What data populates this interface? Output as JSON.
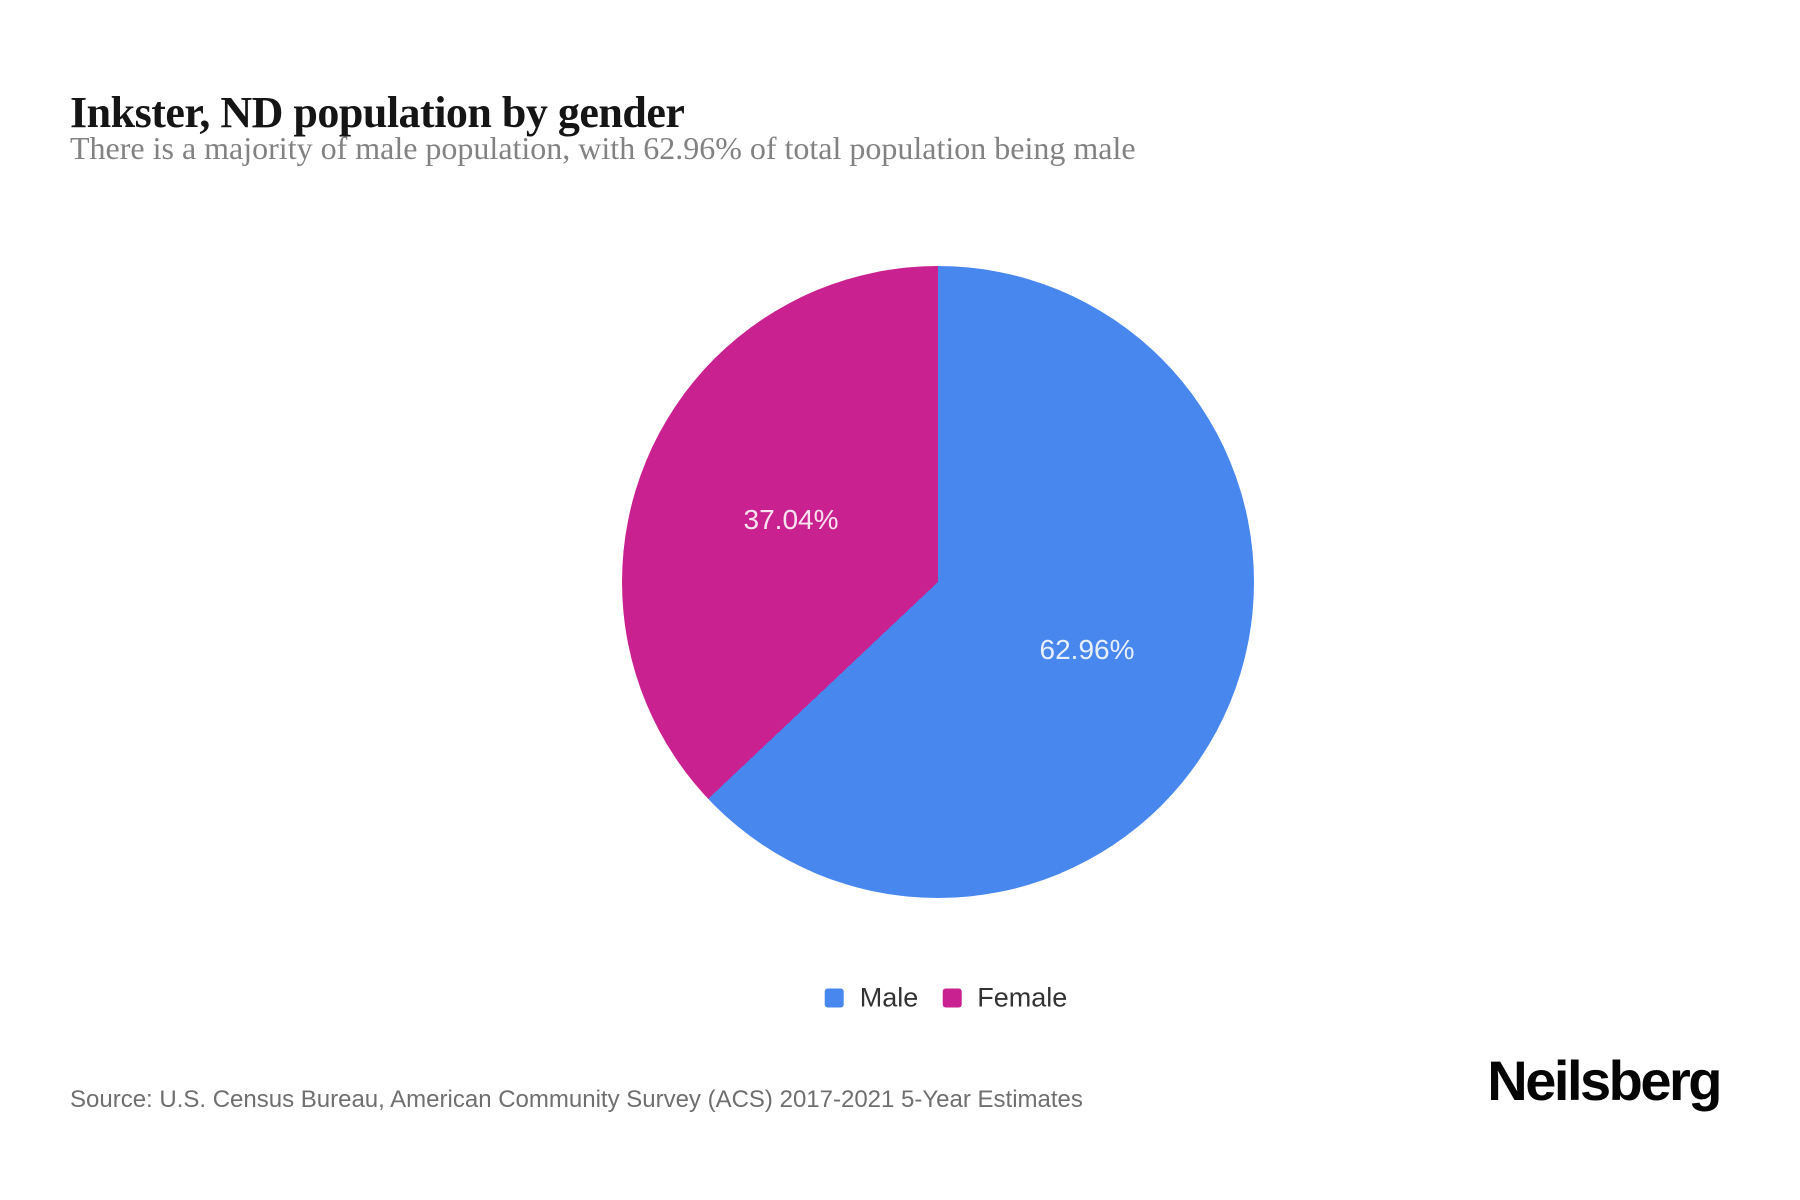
{
  "header": {
    "title": "Inkster, ND population by gender",
    "subtitle": "There is a majority of male population, with 62.96% of total population being male"
  },
  "chart_data": {
    "type": "pie",
    "title": "Inkster, ND population by gender",
    "subtitle": "There is a majority of male population, with 62.96% of total population being male",
    "start_angle_deg": 0,
    "direction": "clockwise",
    "legend_position": "bottom-center",
    "series": [
      {
        "name": "Male",
        "value": 62.96,
        "display": "62.96%",
        "color": "#4787EE"
      },
      {
        "name": "Female",
        "value": 37.04,
        "display": "37.04%",
        "color": "#C9218F"
      }
    ]
  },
  "legend": {
    "items": [
      {
        "label": "Male",
        "color": "#4787EE"
      },
      {
        "label": "Female",
        "color": "#C9218F"
      }
    ]
  },
  "footer": {
    "source": "Source: U.S. Census Bureau, American Community Survey (ACS) 2017-2021 5-Year Estimates",
    "brand": "Neilsberg"
  },
  "colors": {
    "male_blue": "#4787EE",
    "female_magenta": "#C9218F",
    "title_text": "#151515",
    "subtitle_text": "#828282",
    "source_text": "#6F6F6F",
    "background": "#FFFFFF"
  }
}
